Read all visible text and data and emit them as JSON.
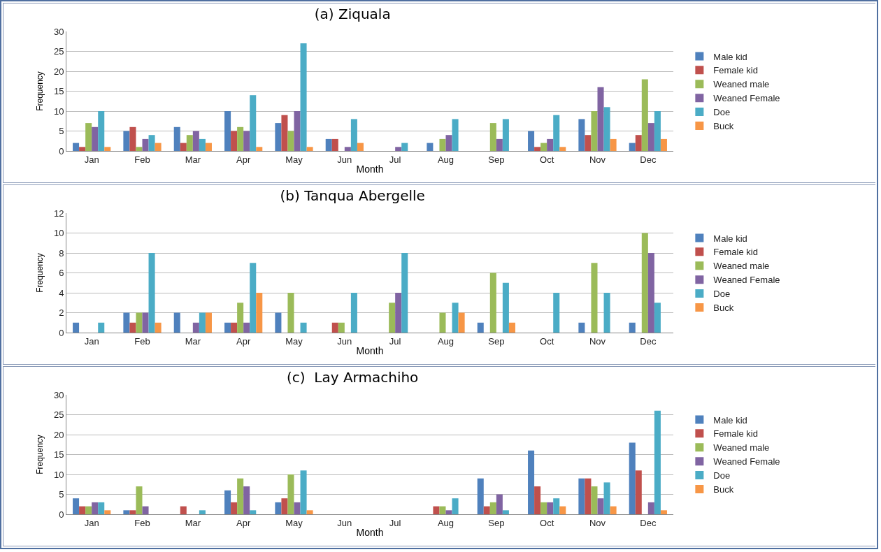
{
  "chart_data": [
    {
      "type": "bar",
      "title": "(a) Ziquala",
      "xlabel": "Month",
      "ylabel": "Frequency",
      "categories": [
        "Jan",
        "Feb",
        "Mar",
        "Apr",
        "May",
        "Jun",
        "Jul",
        "Aug",
        "Sep",
        "Oct",
        "Nov",
        "Dec"
      ],
      "ylim": [
        0,
        30
      ],
      "yticks": [
        0,
        5,
        10,
        15,
        20,
        25,
        30
      ],
      "grid": "y",
      "legend": "right",
      "series": [
        {
          "name": "Male kid",
          "color": "#4f81bd",
          "values": [
            2,
            5,
            6,
            10,
            7,
            3,
            0,
            2,
            0,
            5,
            8,
            2
          ]
        },
        {
          "name": "Female kid",
          "color": "#c0504d",
          "values": [
            1,
            6,
            2,
            5,
            9,
            3,
            0,
            0,
            0,
            1,
            4,
            4
          ]
        },
        {
          "name": "Weaned male",
          "color": "#9bbb59",
          "values": [
            7,
            1,
            4,
            6,
            5,
            0,
            0,
            3,
            7,
            2,
            10,
            18
          ]
        },
        {
          "name": "Weaned Female",
          "color": "#8064a2",
          "values": [
            6,
            3,
            5,
            5,
            10,
            1,
            1,
            4,
            3,
            3,
            16,
            7
          ]
        },
        {
          "name": "Doe",
          "color": "#4bacc6",
          "values": [
            10,
            4,
            3,
            14,
            27,
            8,
            2,
            8,
            8,
            9,
            11,
            10
          ]
        },
        {
          "name": "Buck",
          "color": "#f79646",
          "values": [
            1,
            2,
            2,
            1,
            1,
            2,
            0,
            0,
            0,
            1,
            3,
            3
          ]
        }
      ]
    },
    {
      "type": "bar",
      "title": "(b) Tanqua Abergelle",
      "xlabel": "Month",
      "ylabel": "Frequency",
      "categories": [
        "Jan",
        "Feb",
        "Mar",
        "Apr",
        "May",
        "Jun",
        "Jul",
        "Aug",
        "Sep",
        "Oct",
        "Nov",
        "Dec"
      ],
      "ylim": [
        0,
        12
      ],
      "yticks": [
        0,
        2,
        4,
        6,
        8,
        10,
        12
      ],
      "grid": "y",
      "legend": "right",
      "series": [
        {
          "name": "Male kid",
          "color": "#4f81bd",
          "values": [
            1,
            2,
            2,
            1,
            2,
            0,
            0,
            0,
            1,
            0,
            1,
            1
          ]
        },
        {
          "name": "Female kid",
          "color": "#c0504d",
          "values": [
            0,
            1,
            0,
            1,
            0,
            1,
            0,
            0,
            0,
            0,
            0,
            0
          ]
        },
        {
          "name": "Weaned male",
          "color": "#9bbb59",
          "values": [
            0,
            2,
            0,
            3,
            4,
            1,
            3,
            2,
            6,
            0,
            7,
            10
          ]
        },
        {
          "name": "Weaned Female",
          "color": "#8064a2",
          "values": [
            0,
            2,
            1,
            1,
            0,
            0,
            4,
            0,
            0,
            0,
            0,
            8
          ]
        },
        {
          "name": "Doe",
          "color": "#4bacc6",
          "values": [
            1,
            8,
            2,
            7,
            1,
            4,
            8,
            3,
            5,
            4,
            4,
            3
          ]
        },
        {
          "name": "Buck",
          "color": "#f79646",
          "values": [
            0,
            1,
            2,
            4,
            0,
            0,
            0,
            2,
            1,
            0,
            0,
            0
          ]
        }
      ]
    },
    {
      "type": "bar",
      "title": "(c)  Lay Armachiho",
      "xlabel": "Month",
      "ylabel": "Frequency",
      "categories": [
        "Jan",
        "Feb",
        "Mar",
        "Apr",
        "May",
        "Jun",
        "Jul",
        "Aug",
        "Sep",
        "Oct",
        "Nov",
        "Dec"
      ],
      "ylim": [
        0,
        30
      ],
      "yticks": [
        0,
        5,
        10,
        15,
        20,
        25,
        30
      ],
      "grid": "y",
      "legend": "right",
      "series": [
        {
          "name": "Male kid",
          "color": "#4f81bd",
          "values": [
            4,
            1,
            0,
            6,
            3,
            0,
            0,
            0,
            9,
            16,
            9,
            18
          ]
        },
        {
          "name": "Female kid",
          "color": "#c0504d",
          "values": [
            2,
            1,
            2,
            3,
            4,
            0,
            0,
            2,
            2,
            7,
            9,
            11
          ]
        },
        {
          "name": "Weaned male",
          "color": "#9bbb59",
          "values": [
            2,
            7,
            0,
            9,
            10,
            0,
            0,
            2,
            3,
            3,
            7,
            0
          ]
        },
        {
          "name": "Weaned Female",
          "color": "#8064a2",
          "values": [
            3,
            2,
            0,
            7,
            3,
            0,
            0,
            1,
            5,
            3,
            4,
            3
          ]
        },
        {
          "name": "Doe",
          "color": "#4bacc6",
          "values": [
            3,
            0,
            1,
            1,
            11,
            0,
            0,
            4,
            1,
            4,
            8,
            26
          ]
        },
        {
          "name": "Buck",
          "color": "#f79646",
          "values": [
            1,
            0,
            0,
            0,
            1,
            0,
            0,
            0,
            0,
            2,
            2,
            1
          ]
        }
      ]
    }
  ]
}
